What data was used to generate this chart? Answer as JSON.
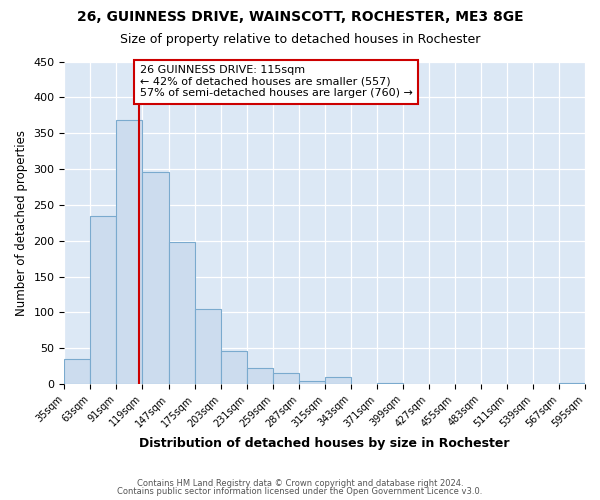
{
  "title": "26, GUINNESS DRIVE, WAINSCOTT, ROCHESTER, ME3 8GE",
  "subtitle": "Size of property relative to detached houses in Rochester",
  "xlabel": "Distribution of detached houses by size in Rochester",
  "ylabel": "Number of detached properties",
  "bar_color": "#ccdcee",
  "bar_edge_color": "#7aaace",
  "plot_bg_color": "#dce8f5",
  "fig_bg_color": "#ffffff",
  "grid_color": "#ffffff",
  "bin_edges": [
    35,
    63,
    91,
    119,
    147,
    175,
    203,
    231,
    259,
    287,
    315,
    343,
    371,
    399,
    427,
    455,
    483,
    511,
    539,
    567,
    595
  ],
  "bin_labels": [
    "35sqm",
    "63sqm",
    "91sqm",
    "119sqm",
    "147sqm",
    "175sqm",
    "203sqm",
    "231sqm",
    "259sqm",
    "287sqm",
    "315sqm",
    "343sqm",
    "371sqm",
    "399sqm",
    "427sqm",
    "455sqm",
    "483sqm",
    "511sqm",
    "539sqm",
    "567sqm",
    "595sqm"
  ],
  "counts": [
    35,
    235,
    368,
    296,
    198,
    105,
    46,
    23,
    15,
    4,
    10,
    0,
    2,
    0,
    0,
    0,
    0,
    0,
    0,
    2
  ],
  "vline_x": 115,
  "vline_color": "#cc0000",
  "annotation_line1": "26 GUINNESS DRIVE: 115sqm",
  "annotation_line2": "← 42% of detached houses are smaller (557)",
  "annotation_line3": "57% of semi-detached houses are larger (760) →",
  "annotation_box_color": "#ffffff",
  "annotation_box_edge": "#cc0000",
  "ylim": [
    0,
    450
  ],
  "yticks": [
    0,
    50,
    100,
    150,
    200,
    250,
    300,
    350,
    400,
    450
  ],
  "footer1": "Contains HM Land Registry data © Crown copyright and database right 2024.",
  "footer2": "Contains public sector information licensed under the Open Government Licence v3.0."
}
